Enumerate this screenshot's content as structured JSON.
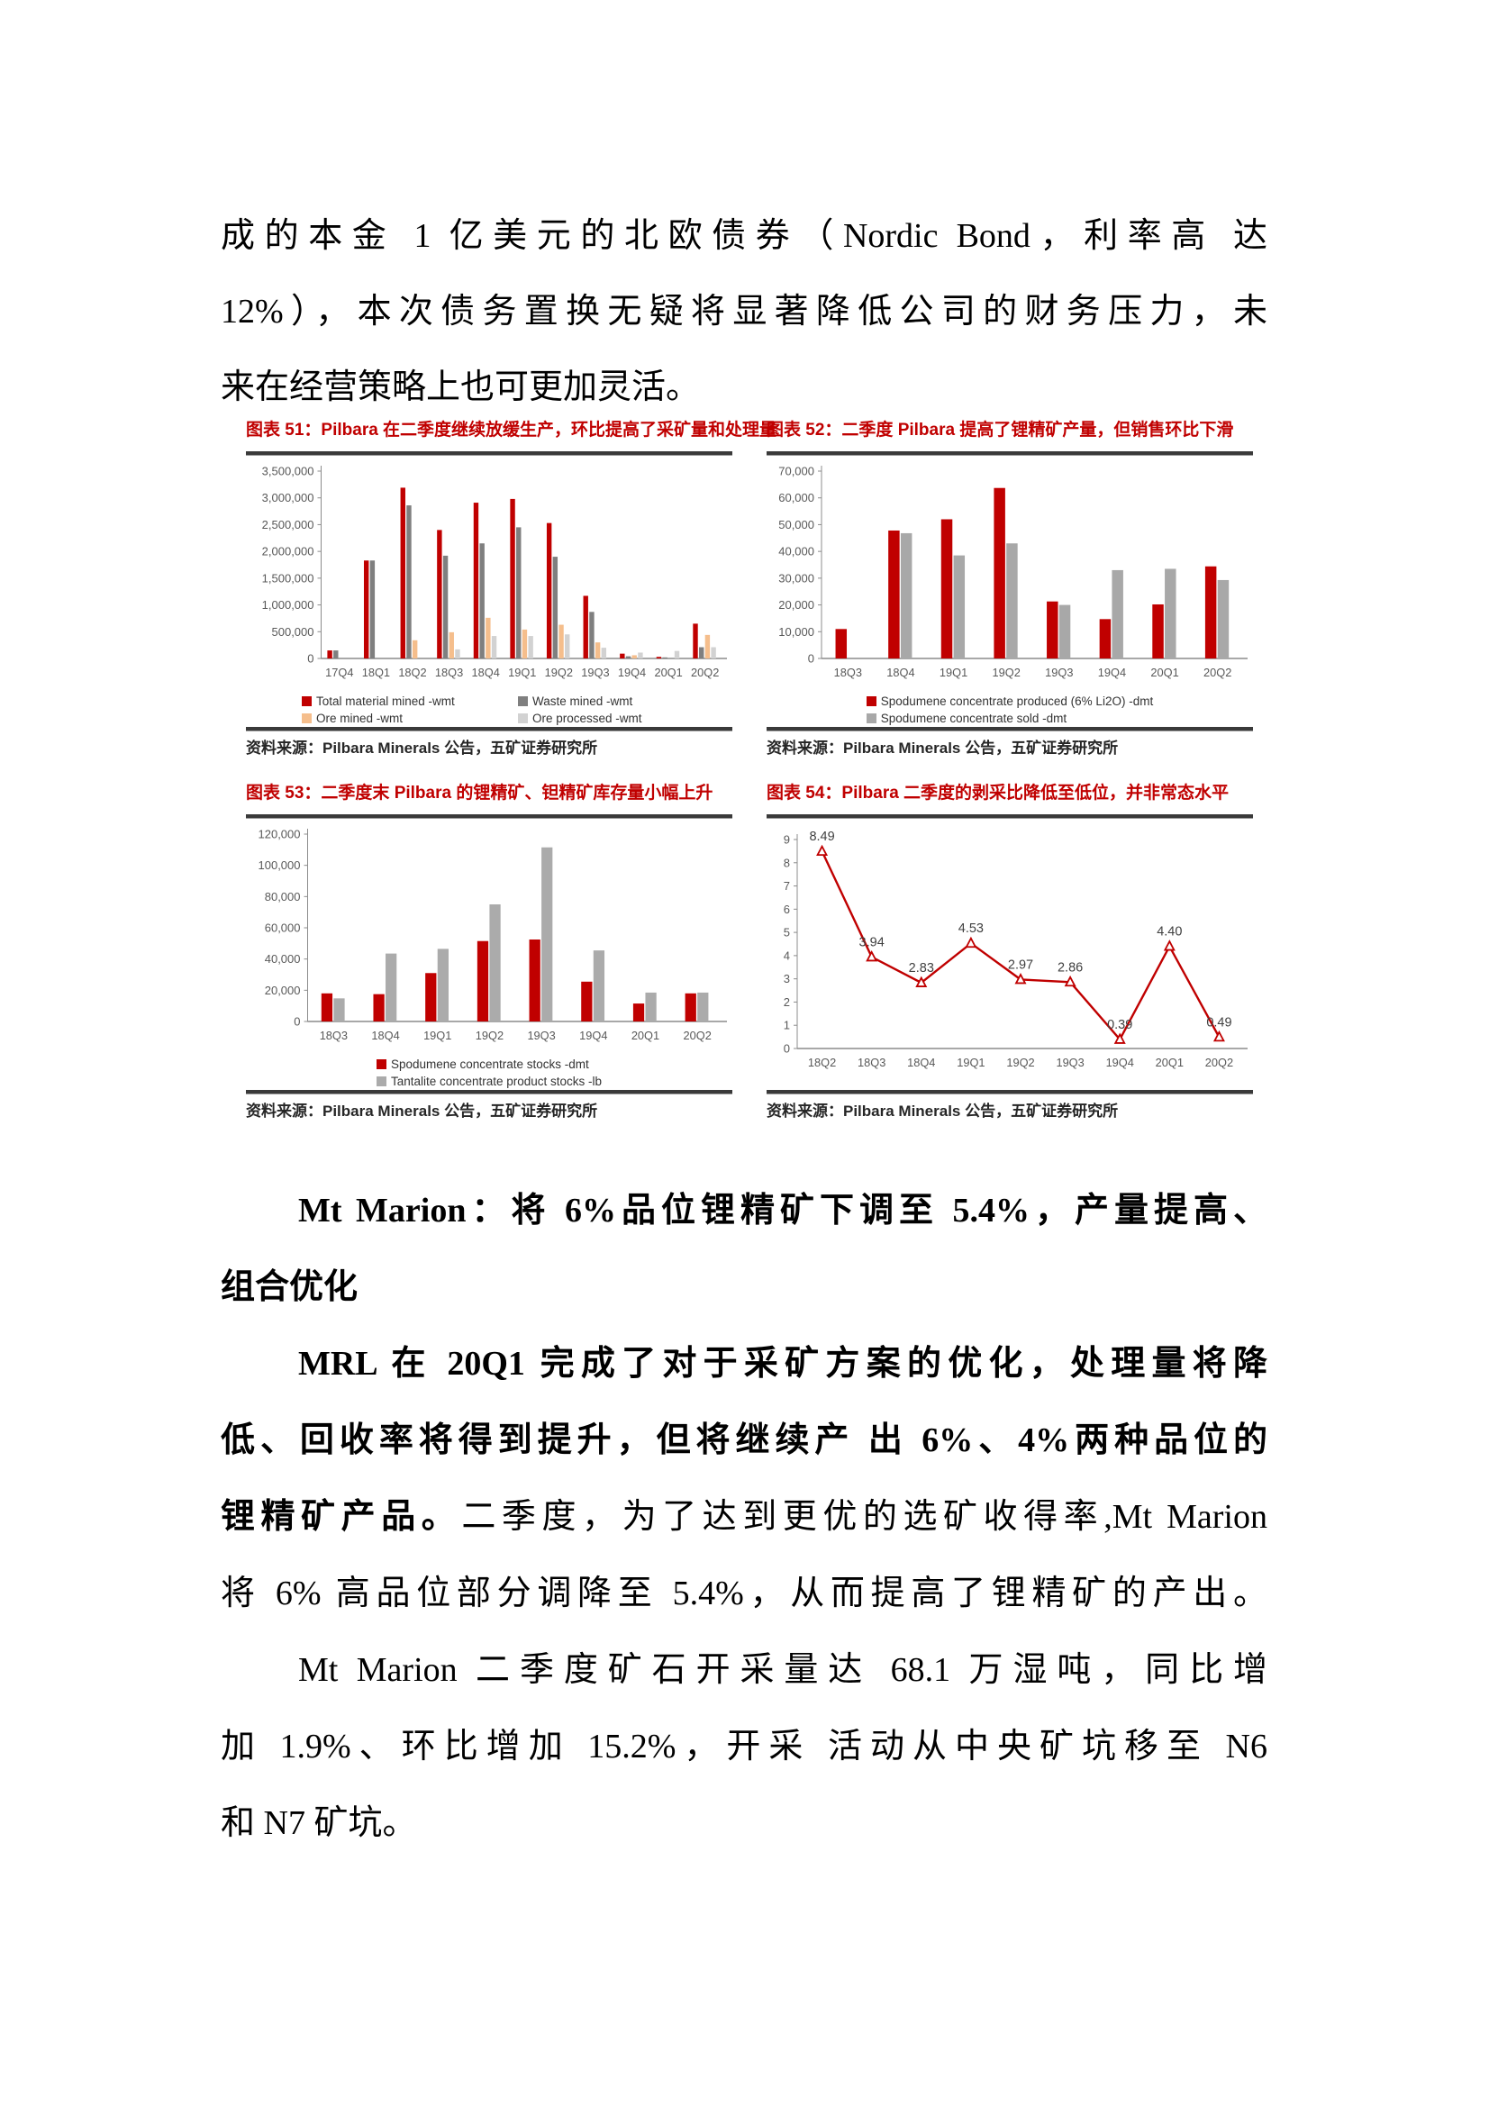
{
  "para_top": {
    "lines": [
      "成的本金 1 亿美元的北欧债券（Nordic Bond，利率高 达",
      "12%），本次债务置换无疑将显著降低公司的财务压力，未",
      "来在经营策略上也可更加灵活。"
    ]
  },
  "section": {
    "heading_line1": "Mt Marion：将 6%品位锂精矿下调至 5.4%，产量提高、",
    "heading_line2": "组合优化",
    "line1": "MRL 在 20Q1 完成了对于采矿方案的优化，处理量将降",
    "line2": "低、回收率将得到提升，但将继续产 出 6%、4%两种品位的",
    "line3_bold": "锂精矿产品。",
    "line3_rest": "二季度，为了达到更优的选矿收得率,Mt Marion",
    "line4": "将 6% 高品位部分调降至 5.4%，从而提高了锂精矿的产出。",
    "line5": "Mt Marion 二季度矿石开采量达 68.1 万湿吨，同比增",
    "line6": "加 1.9%、环比增加 15.2%，开采 活动从中央矿坑移至 N6",
    "line7": "和 N7 矿坑。"
  },
  "chart_data": [
    {
      "type": "bar",
      "figure_label": "图表 51：Pilbara 在二季度继续放缓生产，环比提高了采矿量和处理量",
      "source": "资料来源：Pilbara Minerals 公告，五矿证券研究所",
      "categories": [
        "17Q4",
        "18Q1",
        "18Q2",
        "18Q3",
        "18Q4",
        "19Q1",
        "19Q2",
        "19Q3",
        "19Q4",
        "20Q1",
        "20Q2"
      ],
      "series": [
        {
          "name": "Total material mined -wmt",
          "color": "#c00000",
          "values": [
            150000,
            1830000,
            3190000,
            2400000,
            2910000,
            2980000,
            2530000,
            1170000,
            90000,
            30000,
            650000
          ]
        },
        {
          "name": "Waste mined -wmt",
          "color": "#7f7f7f",
          "values": [
            150000,
            1830000,
            2860000,
            1920000,
            2150000,
            2450000,
            1900000,
            870000,
            40000,
            20000,
            210000
          ]
        },
        {
          "name": "Ore mined -wmt",
          "color": "#f5be8c",
          "values": [
            0,
            0,
            340000,
            490000,
            760000,
            540000,
            630000,
            300000,
            60000,
            0,
            440000
          ]
        },
        {
          "name": "Ore processed -wmt",
          "color": "#d2d2d2",
          "values": [
            0,
            0,
            0,
            170000,
            420000,
            420000,
            450000,
            200000,
            110000,
            140000,
            210000
          ]
        }
      ],
      "ylim": [
        0,
        3500000
      ],
      "ytick_step": 500000,
      "grid": false,
      "legend_position": "bottom"
    },
    {
      "type": "bar",
      "figure_label": "图表 52：二季度 Pilbara 提高了锂精矿产量，但销售环比下滑",
      "source": "资料来源：Pilbara Minerals 公告，五矿证券研究所",
      "categories": [
        "18Q3",
        "18Q4",
        "19Q1",
        "19Q2",
        "19Q3",
        "19Q4",
        "20Q1",
        "20Q2"
      ],
      "series": [
        {
          "name": "Spodumene concentrate produced (6% Li2O) -dmt",
          "color": "#c00000",
          "values": [
            11000,
            47800,
            52000,
            63700,
            21300,
            14700,
            20200,
            34400
          ]
        },
        {
          "name": "Spodumene concentrate sold -dmt",
          "color": "#a8a8a8",
          "values": [
            0,
            46800,
            38500,
            43000,
            20000,
            33000,
            33500,
            29300
          ]
        }
      ],
      "ylim": [
        0,
        70000
      ],
      "ytick_step": 10000,
      "grid": false,
      "legend_position": "bottom"
    },
    {
      "type": "bar",
      "figure_label": "图表 53：二季度末 Pilbara 的锂精矿、钽精矿库存量小幅上升",
      "source": "资料来源：Pilbara Minerals 公告，五矿证券研究所",
      "categories": [
        "18Q3",
        "18Q4",
        "19Q1",
        "19Q2",
        "19Q3",
        "19Q4",
        "20Q1",
        "20Q2"
      ],
      "series": [
        {
          "name": "Spodumene concentrate stocks -dmt",
          "color": "#c00000",
          "values": [
            18000,
            17500,
            31000,
            51500,
            52500,
            25500,
            11500,
            18000
          ]
        },
        {
          "name": "Tantalite concentrate product stocks -lb",
          "color": "#ababab",
          "values": [
            14800,
            43500,
            46500,
            75000,
            111500,
            45500,
            18500,
            18500
          ]
        }
      ],
      "ylim": [
        0,
        120000
      ],
      "ytick_step": 20000,
      "grid": false,
      "legend_position": "bottom"
    },
    {
      "type": "line",
      "figure_label": "图表 54：Pilbara 二季度的剥采比降低至低位，并非常态水平",
      "source": "资料来源：Pilbara Minerals 公告，五矿证券研究所",
      "categories": [
        "18Q2",
        "18Q3",
        "18Q4",
        "19Q1",
        "19Q2",
        "19Q3",
        "19Q4",
        "20Q1",
        "20Q2"
      ],
      "series": [
        {
          "color": "#c00000",
          "marker": "triangle-open",
          "values": [
            8.49,
            3.94,
            2.83,
            4.53,
            2.97,
            2.86,
            0.39,
            4.4,
            0.49
          ]
        }
      ],
      "data_labels": [
        "8.49",
        "3.94",
        "2.83",
        "4.53",
        "2.97",
        "2.86",
        "0.39",
        "4.40",
        "0.49"
      ],
      "ylim": [
        0,
        9
      ],
      "ytick_step": 1,
      "grid": false,
      "legend_position": "none"
    }
  ]
}
